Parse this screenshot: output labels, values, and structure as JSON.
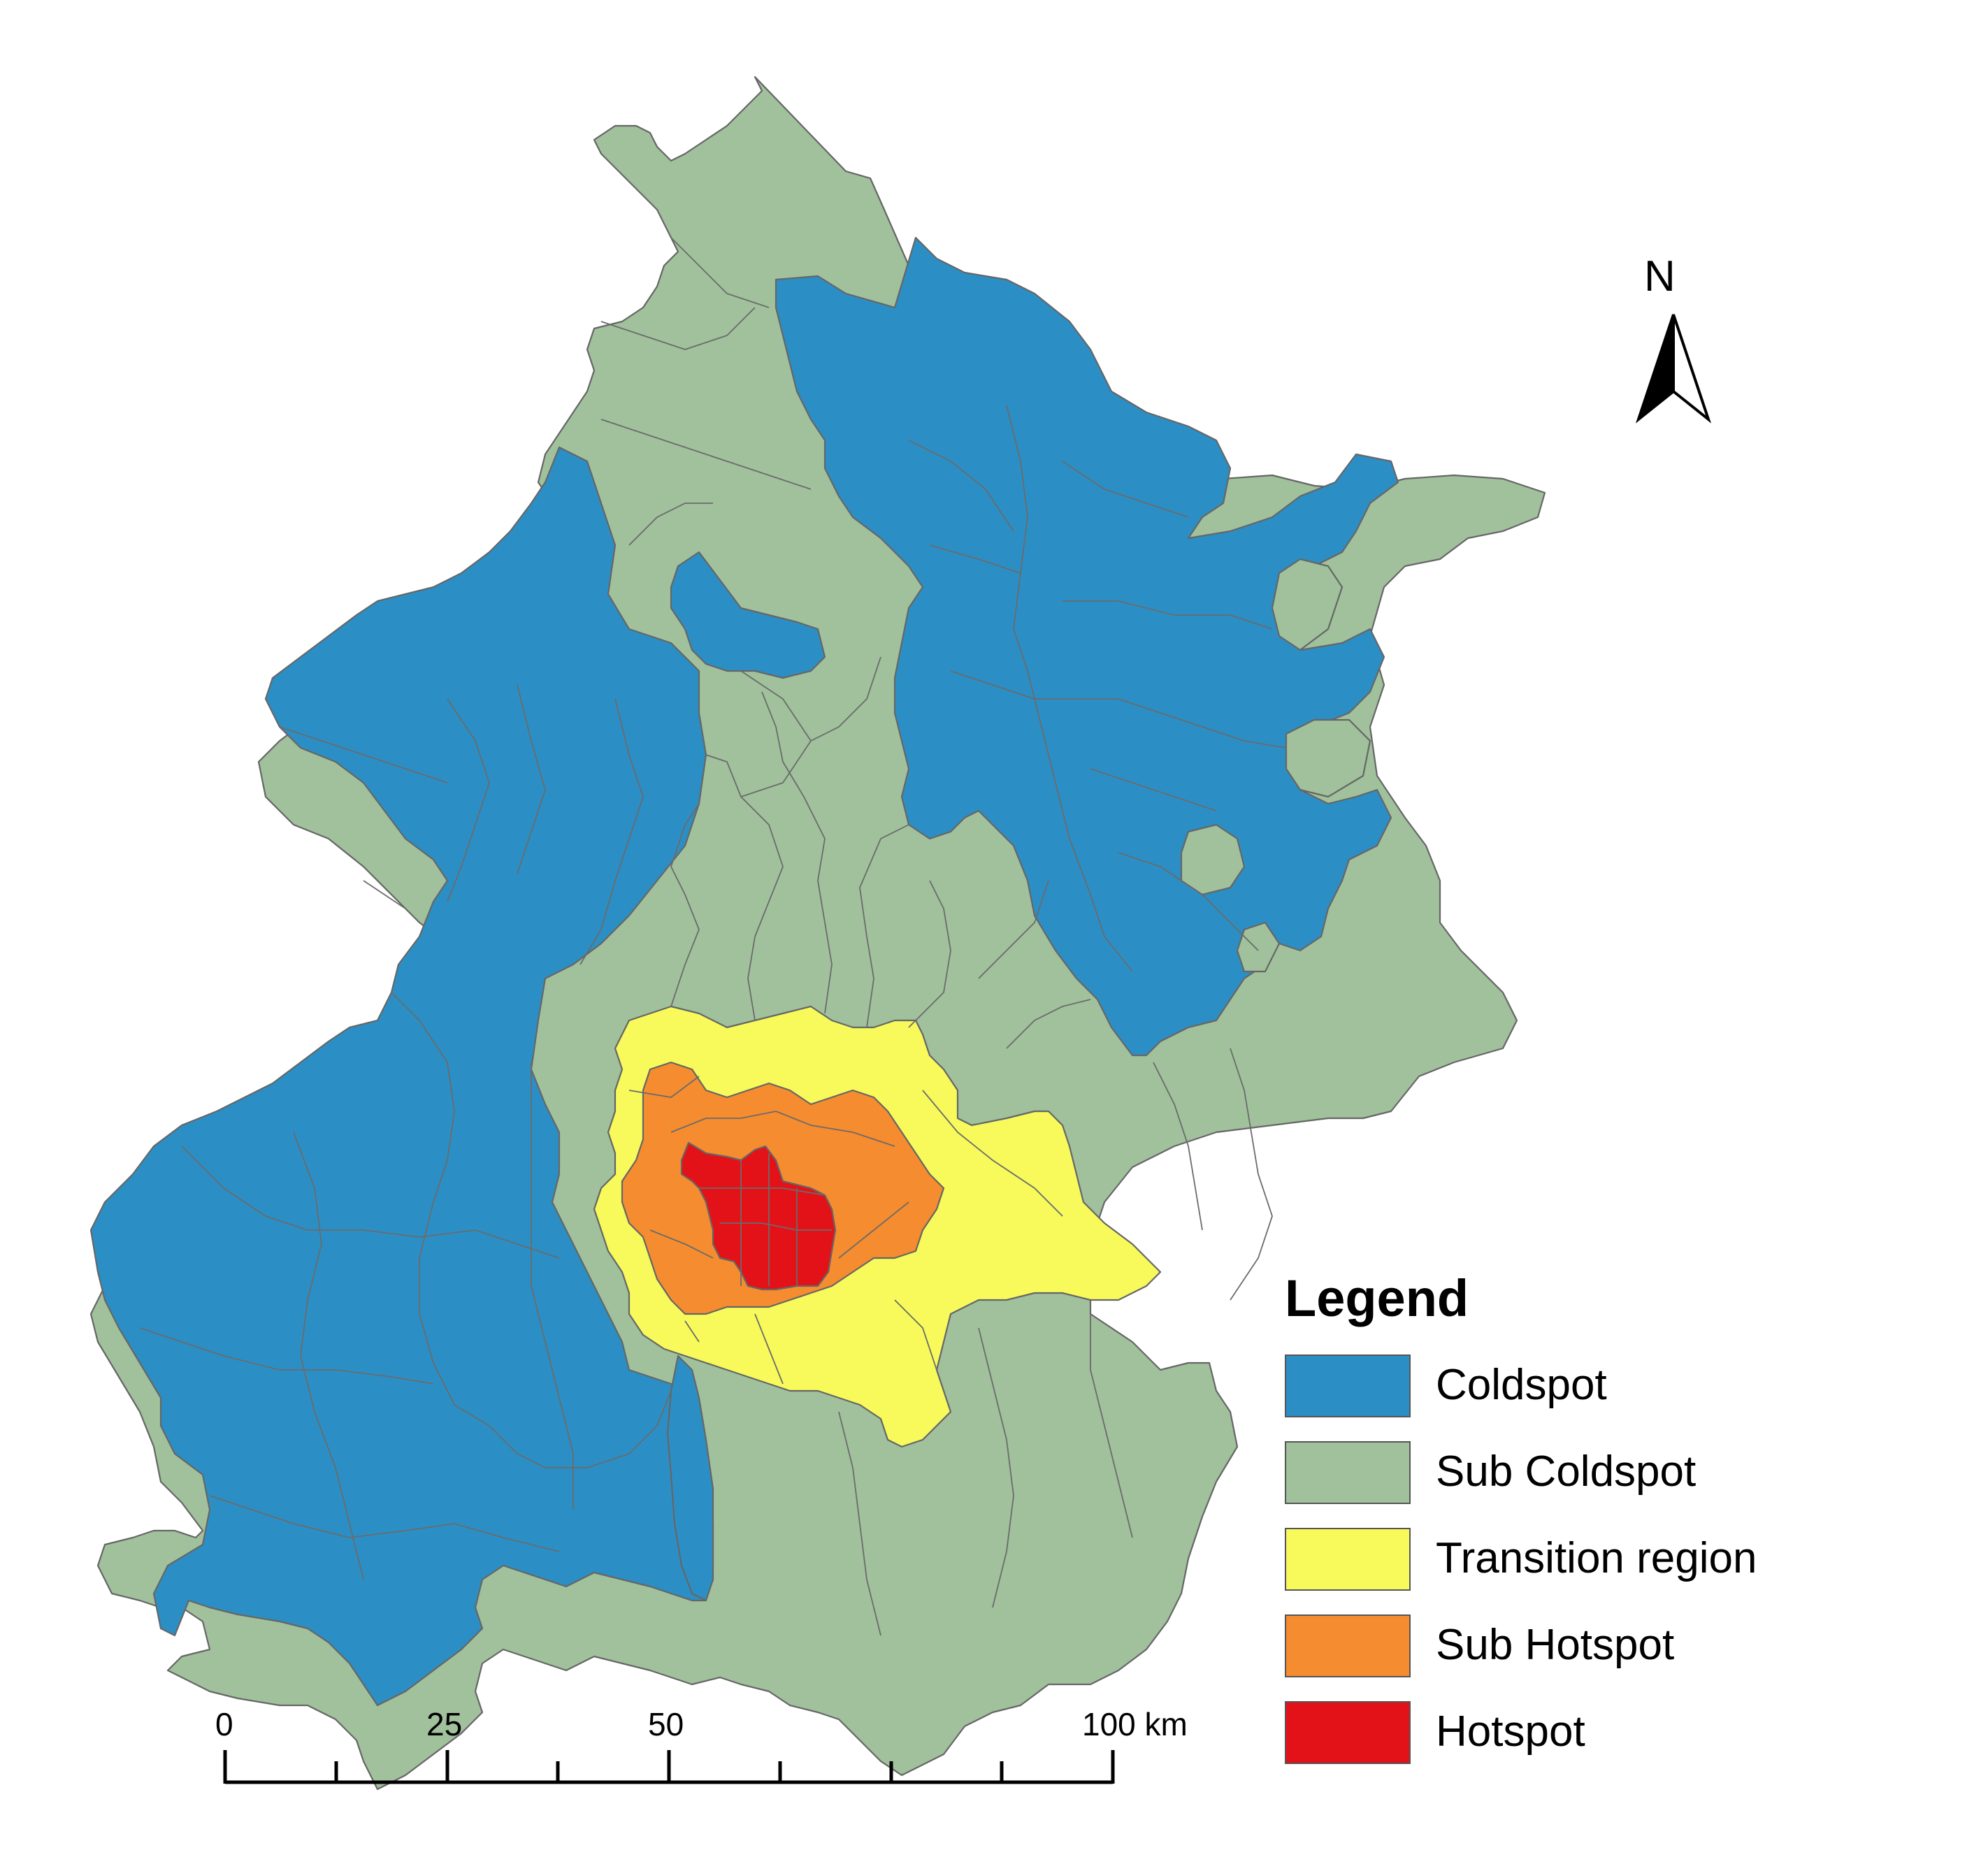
{
  "legend": {
    "title": "Legend",
    "items": [
      {
        "label": "Coldspot",
        "color": "#2b8fc6"
      },
      {
        "label": "Sub Coldspot",
        "color": "#a0c19c"
      },
      {
        "label": "Transition region",
        "color": "#f7fa5a"
      },
      {
        "label": "Sub Hotspot",
        "color": "#f58c2f"
      },
      {
        "label": "Hotspot",
        "color": "#e31219"
      }
    ]
  },
  "north_arrow": {
    "label": "N",
    "icon": "north-arrow-icon"
  },
  "scale_bar": {
    "labels": [
      "0",
      "25",
      "50",
      "100 km"
    ]
  }
}
